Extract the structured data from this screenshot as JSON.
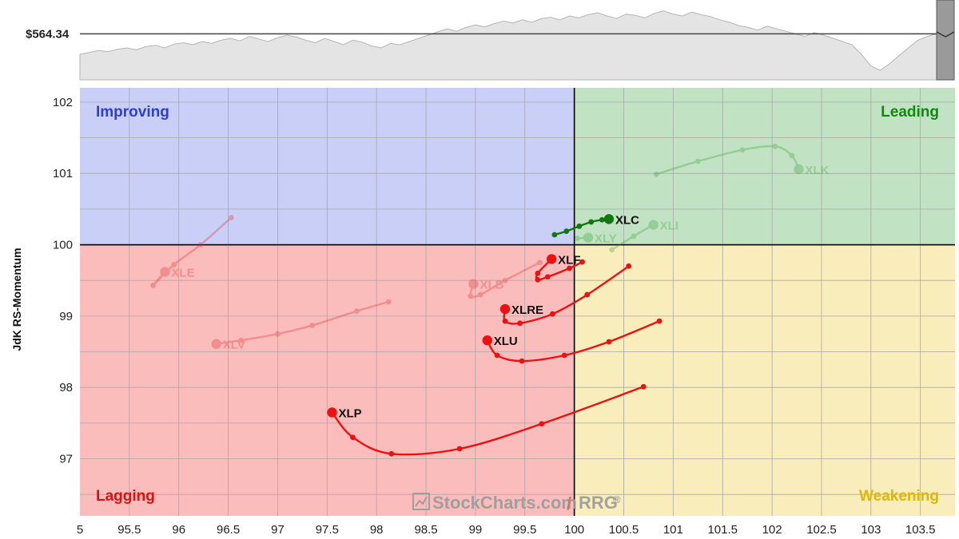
{
  "chart_data": {
    "type": "scatter",
    "subtype": "relative-rotation-graph",
    "xlabel": "",
    "ylabel": "JdK RS-Momentum",
    "xlim": [
      95,
      103.85
    ],
    "ylim": [
      96.2,
      102.2
    ],
    "x_ticks": [
      "5",
      "95.5",
      "96",
      "96.5",
      "97",
      "97.5",
      "98",
      "98.5",
      "99",
      "99.5",
      "100",
      "100.5",
      "101",
      "101.5",
      "102",
      "102.5",
      "103",
      "103.5"
    ],
    "y_ticks": [
      "102",
      "101",
      "100",
      "99",
      "98",
      "97"
    ],
    "grid": true,
    "center": [
      100,
      100
    ],
    "quadrants": [
      {
        "label": "Improving",
        "color": "#2f3fc8",
        "fill": "#c9cff6",
        "position": "top-left"
      },
      {
        "label": "Leading",
        "color": "#118811",
        "fill": "#c2e2c4",
        "position": "top-right"
      },
      {
        "label": "Lagging",
        "color": "#dd1111",
        "fill": "#fbbcbc",
        "position": "bottom-left"
      },
      {
        "label": "Weakening",
        "color": "#e0b800",
        "fill": "#faedbc",
        "position": "bottom-right"
      }
    ],
    "price_panel": {
      "price_label": "$564.34",
      "price_level": 0.62,
      "series": [
        0.3,
        0.33,
        0.36,
        0.34,
        0.38,
        0.4,
        0.37,
        0.42,
        0.44,
        0.4,
        0.46,
        0.48,
        0.45,
        0.5,
        0.47,
        0.52,
        0.55,
        0.51,
        0.58,
        0.54,
        0.5,
        0.56,
        0.6,
        0.57,
        0.52,
        0.48,
        0.55,
        0.5,
        0.45,
        0.52,
        0.49,
        0.43,
        0.4,
        0.47,
        0.45,
        0.5,
        0.55,
        0.6,
        0.65,
        0.7,
        0.66,
        0.72,
        0.76,
        0.73,
        0.78,
        0.82,
        0.79,
        0.84,
        0.8,
        0.86,
        0.88,
        0.84,
        0.9,
        0.87,
        0.92,
        0.95,
        0.9,
        0.86,
        0.93,
        0.91,
        0.87,
        0.94,
        0.98,
        0.93,
        0.9,
        0.96,
        0.92,
        0.89,
        0.84,
        0.8,
        0.75,
        0.72,
        0.68,
        0.74,
        0.7,
        0.66,
        0.62,
        0.58,
        0.64,
        0.6,
        0.55,
        0.5,
        0.45,
        0.3,
        0.12,
        0.05,
        0.15,
        0.28,
        0.4,
        0.52,
        0.58,
        0.62
      ]
    },
    "series": [
      {
        "name": "XLK",
        "color": "#36a436",
        "faded": true,
        "points": [
          [
            100.83,
            100.99
          ],
          [
            101.25,
            101.17
          ],
          [
            101.7,
            101.33
          ],
          [
            102.03,
            101.38
          ],
          [
            102.2,
            101.25
          ],
          [
            102.27,
            101.06
          ]
        ]
      },
      {
        "name": "XLI",
        "color": "#36a436",
        "faded": true,
        "points": [
          [
            100.38,
            99.93
          ],
          [
            100.6,
            100.12
          ],
          [
            100.8,
            100.28
          ]
        ]
      },
      {
        "name": "XLY",
        "color": "#36a436",
        "faded": true,
        "points": [
          [
            100.03,
            100.09
          ],
          [
            100.14,
            100.1
          ]
        ]
      },
      {
        "name": "XLE",
        "color": "#e03030",
        "faded": true,
        "points": [
          [
            96.53,
            100.38
          ],
          [
            96.22,
            100.0
          ],
          [
            95.95,
            99.72
          ],
          [
            95.74,
            99.43
          ],
          [
            95.86,
            99.62
          ]
        ]
      },
      {
        "name": "XLV",
        "color": "#e03030",
        "faded": true,
        "points": [
          [
            98.12,
            99.2
          ],
          [
            97.8,
            99.07
          ],
          [
            97.35,
            98.87
          ],
          [
            97.0,
            98.75
          ],
          [
            96.63,
            98.66
          ],
          [
            96.38,
            98.61
          ]
        ]
      },
      {
        "name": "XLB",
        "color": "#e03030",
        "faded": true,
        "points": [
          [
            99.65,
            99.75
          ],
          [
            99.3,
            99.5
          ],
          [
            99.05,
            99.3
          ],
          [
            98.95,
            99.28
          ],
          [
            98.98,
            99.45
          ]
        ]
      },
      {
        "name": "XLP",
        "color": "#ee1111",
        "faded": false,
        "points": [
          [
            100.7,
            98.01
          ],
          [
            99.67,
            97.49
          ],
          [
            98.84,
            97.14
          ],
          [
            98.15,
            97.07
          ],
          [
            97.76,
            97.3
          ],
          [
            97.55,
            97.65
          ]
        ]
      },
      {
        "name": "XLU",
        "color": "#ee1111",
        "faded": false,
        "points": [
          [
            100.86,
            98.93
          ],
          [
            100.35,
            98.64
          ],
          [
            99.9,
            98.45
          ],
          [
            99.47,
            98.37
          ],
          [
            99.22,
            98.45
          ],
          [
            99.12,
            98.66
          ]
        ]
      },
      {
        "name": "XLRE",
        "color": "#ee1111",
        "faded": false,
        "points": [
          [
            100.55,
            99.7
          ],
          [
            100.13,
            99.3
          ],
          [
            99.78,
            99.03
          ],
          [
            99.45,
            98.9
          ],
          [
            99.3,
            98.93
          ],
          [
            99.3,
            99.1
          ]
        ]
      },
      {
        "name": "XLF",
        "color": "#ee1111",
        "faded": false,
        "points": [
          [
            100.08,
            99.76
          ],
          [
            99.95,
            99.67
          ],
          [
            99.73,
            99.55
          ],
          [
            99.63,
            99.51
          ],
          [
            99.63,
            99.6
          ],
          [
            99.77,
            99.8
          ]
        ]
      },
      {
        "name": "XLC",
        "color": "#117711",
        "faded": false,
        "points": [
          [
            99.8,
            100.14
          ],
          [
            99.92,
            100.19
          ],
          [
            100.05,
            100.26
          ],
          [
            100.17,
            100.32
          ],
          [
            100.28,
            100.35
          ],
          [
            100.35,
            100.36
          ]
        ]
      }
    ]
  },
  "watermark": {
    "brand": "StockCharts.com",
    "product": "RRG",
    "registered": "®",
    "separator": "/"
  }
}
